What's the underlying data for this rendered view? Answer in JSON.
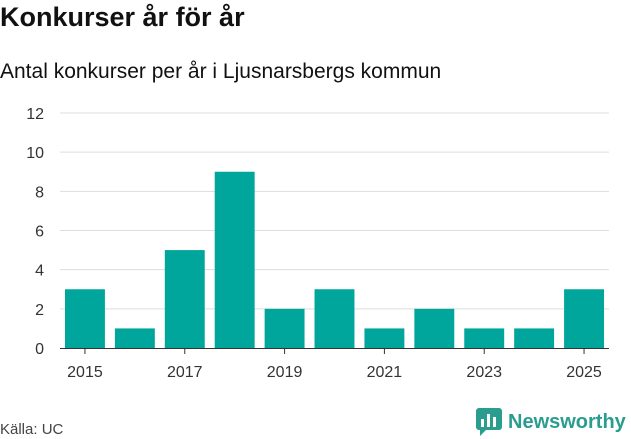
{
  "header": {
    "title": "Konkurser år för år",
    "subtitle": "Antal konkurser per år i Ljusnarsbergs kommun"
  },
  "footer": {
    "source": "Källa: UC",
    "brand": "Newsworthy"
  },
  "colors": {
    "bar": "#00a69c",
    "grid": "#dddddd",
    "axis": "#333333",
    "brand": "#2a9d8f"
  },
  "icons": {
    "brand_logo": "bar-chart-speech-bubble-icon"
  },
  "chart_data": {
    "type": "bar",
    "categories": [
      2015,
      2016,
      2017,
      2018,
      2019,
      2020,
      2021,
      2022,
      2023,
      2024,
      2025
    ],
    "values": [
      3,
      1,
      5,
      9,
      2,
      3,
      1,
      2,
      1,
      1,
      3
    ],
    "ylim": [
      0,
      12
    ],
    "yticks": [
      0,
      2,
      4,
      6,
      8,
      10,
      12
    ],
    "xtick_labels": [
      "2015",
      "2017",
      "2019",
      "2021",
      "2023",
      "2025"
    ],
    "grid": true,
    "legend": "none"
  }
}
